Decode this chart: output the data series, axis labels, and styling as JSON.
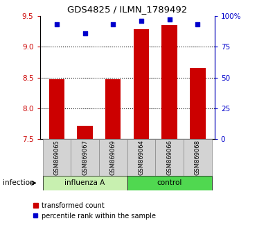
{
  "title": "GDS4825 / ILMN_1789492",
  "samples": [
    "GSM869065",
    "GSM869067",
    "GSM869069",
    "GSM869064",
    "GSM869066",
    "GSM869068"
  ],
  "groups": [
    "influenza A",
    "influenza A",
    "influenza A",
    "control",
    "control",
    "control"
  ],
  "group_names": [
    "influenza A",
    "control"
  ],
  "transformed_counts": [
    8.47,
    7.72,
    8.47,
    9.28,
    9.35,
    8.65
  ],
  "percentile_ranks": [
    93,
    86,
    93,
    96,
    97,
    93
  ],
  "ylim_left": [
    7.5,
    9.5
  ],
  "ylim_right": [
    0,
    100
  ],
  "yticks_left": [
    7.5,
    8.0,
    8.5,
    9.0,
    9.5
  ],
  "yticks_right": [
    0,
    25,
    50,
    75,
    100
  ],
  "ytick_labels_right": [
    "0",
    "25",
    "50",
    "75",
    "100%"
  ],
  "dotted_lines": [
    8.0,
    8.5,
    9.0
  ],
  "bar_color": "#cc0000",
  "dot_color": "#0000cc",
  "infection_label": "infection",
  "legend_bar_label": "transformed count",
  "legend_dot_label": "percentile rank within the sample",
  "bar_width": 0.55,
  "background_color": "#ffffff",
  "influenza_color": "#c8f0b0",
  "control_color": "#50d850"
}
